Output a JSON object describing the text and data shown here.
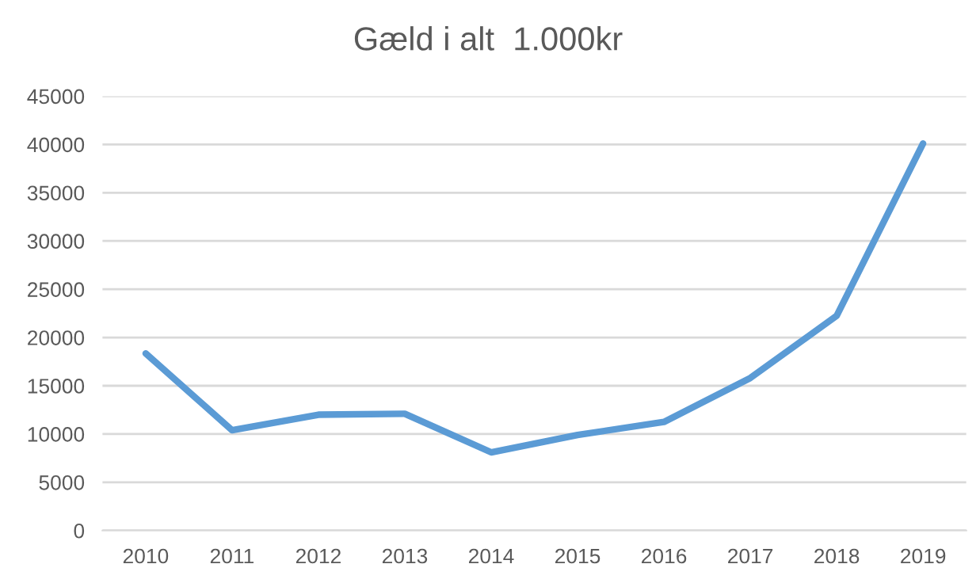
{
  "chart_data": {
    "type": "line",
    "title": "Gæld i alt  1.000kr",
    "categories": [
      "2010",
      "2011",
      "2012",
      "2013",
      "2014",
      "2015",
      "2016",
      "2017",
      "2018",
      "2019"
    ],
    "values": [
      18350,
      10400,
      12000,
      12100,
      8100,
      9900,
      11250,
      15800,
      22250,
      40100
    ],
    "color": "#5b9bd5",
    "ylim": [
      0,
      45000
    ],
    "yticks": [
      0,
      5000,
      10000,
      15000,
      20000,
      25000,
      30000,
      35000,
      40000,
      45000
    ],
    "grid": "y",
    "marker": "none",
    "line_style": "solid"
  }
}
